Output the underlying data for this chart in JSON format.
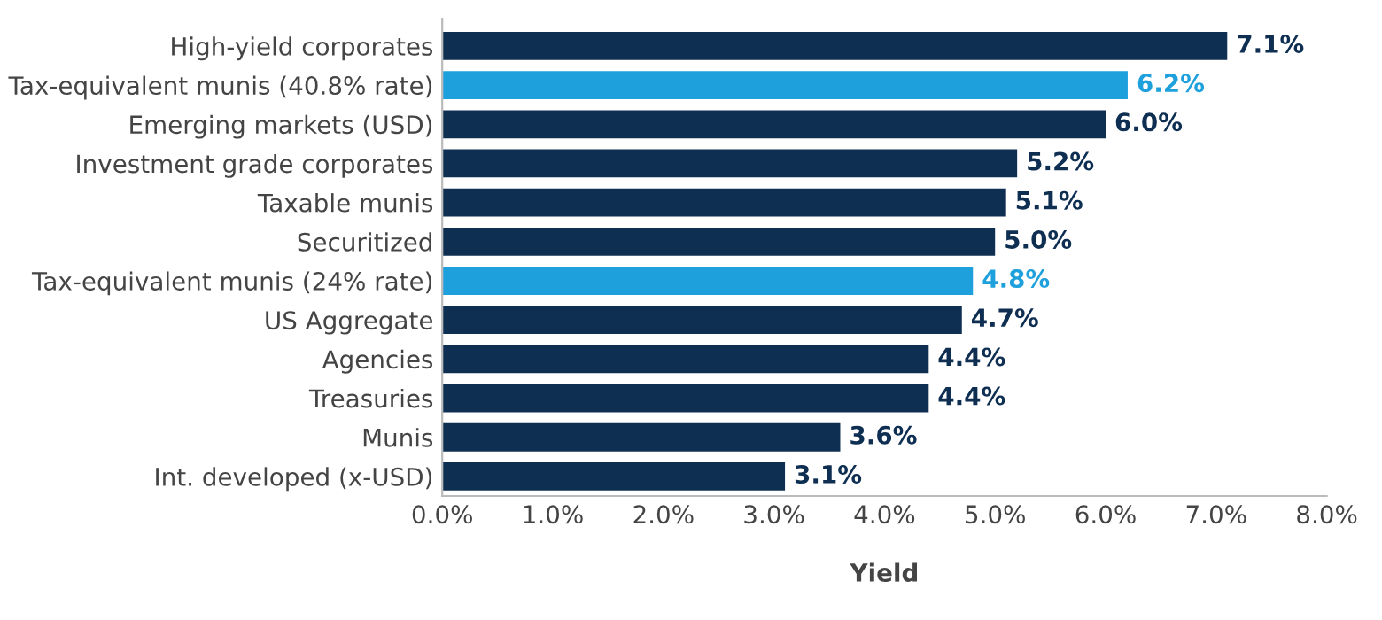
{
  "chart_data": {
    "type": "bar",
    "orientation": "horizontal",
    "xlabel": "Yield",
    "categories": [
      "High-yield corporates",
      "Tax-equivalent munis (40.8% rate)",
      "Emerging markets (USD)",
      "Investment grade corporates",
      "Taxable munis",
      "Securitized",
      "Tax-equivalent munis (24% rate)",
      "US Aggregate",
      "Agencies",
      "Treasuries",
      "Munis",
      "Int. developed (x-USD)"
    ],
    "values": [
      7.1,
      6.2,
      6.0,
      5.2,
      5.1,
      5.0,
      4.8,
      4.7,
      4.4,
      4.4,
      3.6,
      3.1
    ],
    "colors": [
      "#0e2f52",
      "#1ea0dc",
      "#0e2f52",
      "#0e2f52",
      "#0e2f52",
      "#0e2f52",
      "#1ea0dc",
      "#0e2f52",
      "#0e2f52",
      "#0e2f52",
      "#0e2f52",
      "#0e2f52"
    ],
    "value_labels": [
      "7.1%",
      "6.2%",
      "6.0%",
      "5.2%",
      "5.1%",
      "5.0%",
      "4.8%",
      "4.7%",
      "4.4%",
      "4.4%",
      "3.6%",
      "3.1%"
    ],
    "xlim": [
      0,
      8
    ],
    "xticks": [
      {
        "value": 0,
        "label": "0.0%"
      },
      {
        "value": 1,
        "label": "1.0%"
      },
      {
        "value": 2,
        "label": "2.0%"
      },
      {
        "value": 3,
        "label": "3.0%"
      },
      {
        "value": 4,
        "label": "4.0%"
      },
      {
        "value": 5,
        "label": "5.0%"
      },
      {
        "value": 6,
        "label": "6.0%"
      },
      {
        "value": 7,
        "label": "7.0%"
      },
      {
        "value": 8,
        "label": "8.0%"
      }
    ],
    "grid": false
  }
}
